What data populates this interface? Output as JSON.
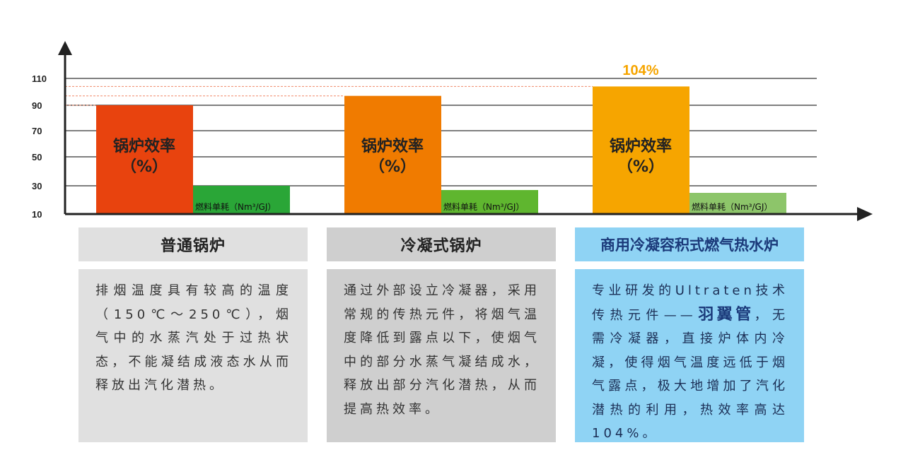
{
  "chart_data": {
    "type": "bar",
    "highlight_label": "104%",
    "y_ticks": [
      10,
      30,
      50,
      70,
      90,
      110
    ],
    "ylim": [
      10,
      110
    ],
    "grid": true,
    "groups": [
      {
        "efficiency": 90,
        "efficiency_label_line1": "锅炉效率",
        "efficiency_label_line2": "（%）",
        "efficiency_color": "#e8430e",
        "consumption": 30,
        "consumption_label": "燃料单耗（Nm³/GJ）",
        "consumption_color": "#2aa637"
      },
      {
        "efficiency": 97,
        "efficiency_label_line1": "锅炉效率",
        "efficiency_label_line2": "（%）",
        "efficiency_color": "#f07b00",
        "consumption": 27,
        "consumption_label": "燃料单耗（Nm³/GJ）",
        "consumption_color": "#5fb62f"
      },
      {
        "efficiency": 104,
        "efficiency_label_line1": "锅炉效率",
        "efficiency_label_line2": "（%）",
        "efficiency_color": "#f6a500",
        "consumption": 25,
        "consumption_label": "燃料单耗（Nm³/GJ）",
        "consumption_color": "#8dc56a"
      }
    ],
    "reference_lines": [
      90,
      97,
      104
    ],
    "reference_line_color": "#f08a6a"
  },
  "panels": [
    {
      "title": "普通锅炉",
      "text": "排烟温度具有较高的温度（150℃～250℃），烟气中的水蒸汽处于过热状态，不能凝结成液态水从而释放出汽化潜热。"
    },
    {
      "title": "冷凝式锅炉",
      "text": "通过外部设立冷凝器，采用常规的传热元件，将烟气温度降低到露点以下，使烟气中的部分水蒸气凝结成水，释放出部分汽化潜热，从而提高热效率。"
    },
    {
      "title": "商用冷凝容积式燃气热水炉",
      "text_before": "专业研发的Ultraten技术传热元件——",
      "text_strong": "羽翼管",
      "text_after": "，无需冷凝器，直接炉体内冷凝，使得烟气温度远低于烟气露点，极大地增加了汽化潜热的利用，热效率高达104%。"
    }
  ]
}
